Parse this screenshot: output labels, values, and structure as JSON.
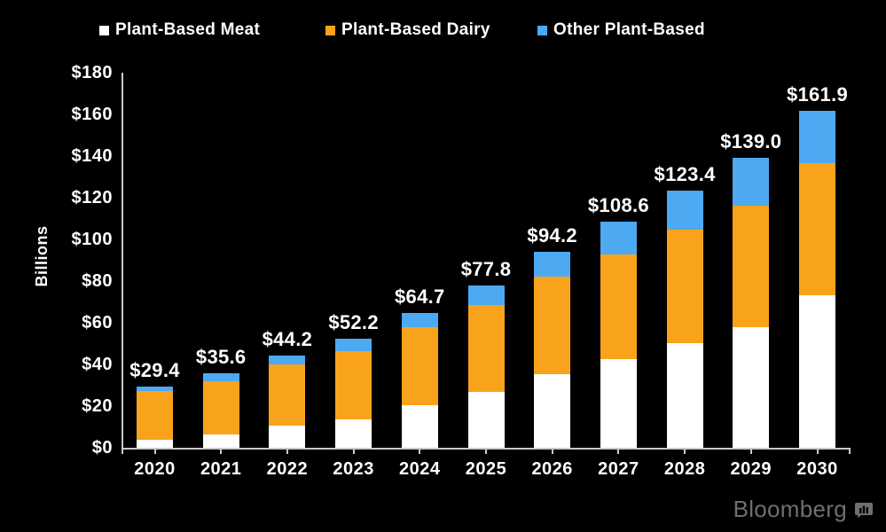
{
  "colors": {
    "background": "#000000",
    "axis": "#c9c9c9",
    "text": "#ffffff",
    "brand": "#6f6f6f"
  },
  "legend": {
    "items": [
      {
        "label": "Plant-Based Meat",
        "color": "#ffffff"
      },
      {
        "label": "Plant-Based Dairy",
        "color": "#f9a21b"
      },
      {
        "label": "Other Plant-Based",
        "color": "#4da9f2"
      }
    ]
  },
  "y_axis": {
    "label": "Billions",
    "tick_labels": [
      "$0",
      "$20",
      "$40",
      "$60",
      "$80",
      "$100",
      "$120",
      "$140",
      "$160",
      "$180"
    ],
    "tick_values": [
      0,
      20,
      40,
      60,
      80,
      100,
      120,
      140,
      160,
      180
    ]
  },
  "chart_data": {
    "type": "bar",
    "stacked": true,
    "legend_position": "top",
    "grid": false,
    "ylabel": "Billions",
    "ylim": [
      0,
      180
    ],
    "categories": [
      "2020",
      "2021",
      "2022",
      "2023",
      "2024",
      "2025",
      "2026",
      "2027",
      "2028",
      "2029",
      "2030"
    ],
    "series": [
      {
        "name": "Plant-Based Meat",
        "color": "#ffffff",
        "values": [
          4.0,
          6.2,
          10.7,
          13.5,
          20.3,
          27.0,
          35.5,
          42.5,
          50.4,
          57.9,
          73.1
        ]
      },
      {
        "name": "Plant-Based Dairy",
        "color": "#f9a21b",
        "values": [
          23.2,
          25.8,
          29.5,
          32.9,
          37.6,
          41.5,
          46.7,
          50.4,
          54.1,
          58.1,
          63.3
        ]
      },
      {
        "name": "Other Plant-Based",
        "color": "#4da9f2",
        "values": [
          2.2,
          3.6,
          4.0,
          5.8,
          6.8,
          9.3,
          12.0,
          15.7,
          18.9,
          23.0,
          25.5
        ]
      }
    ],
    "totals": [
      29.4,
      35.6,
      44.2,
      52.2,
      64.7,
      77.8,
      94.2,
      108.6,
      123.4,
      139.0,
      161.9
    ],
    "total_labels": [
      "$29.4",
      "$35.6",
      "$44.2",
      "$52.2",
      "$64.7",
      "$77.8",
      "$94.2",
      "$108.6",
      "$123.4",
      "$139.0",
      "$161.9"
    ]
  },
  "footer": {
    "brand": "Bloomberg"
  }
}
